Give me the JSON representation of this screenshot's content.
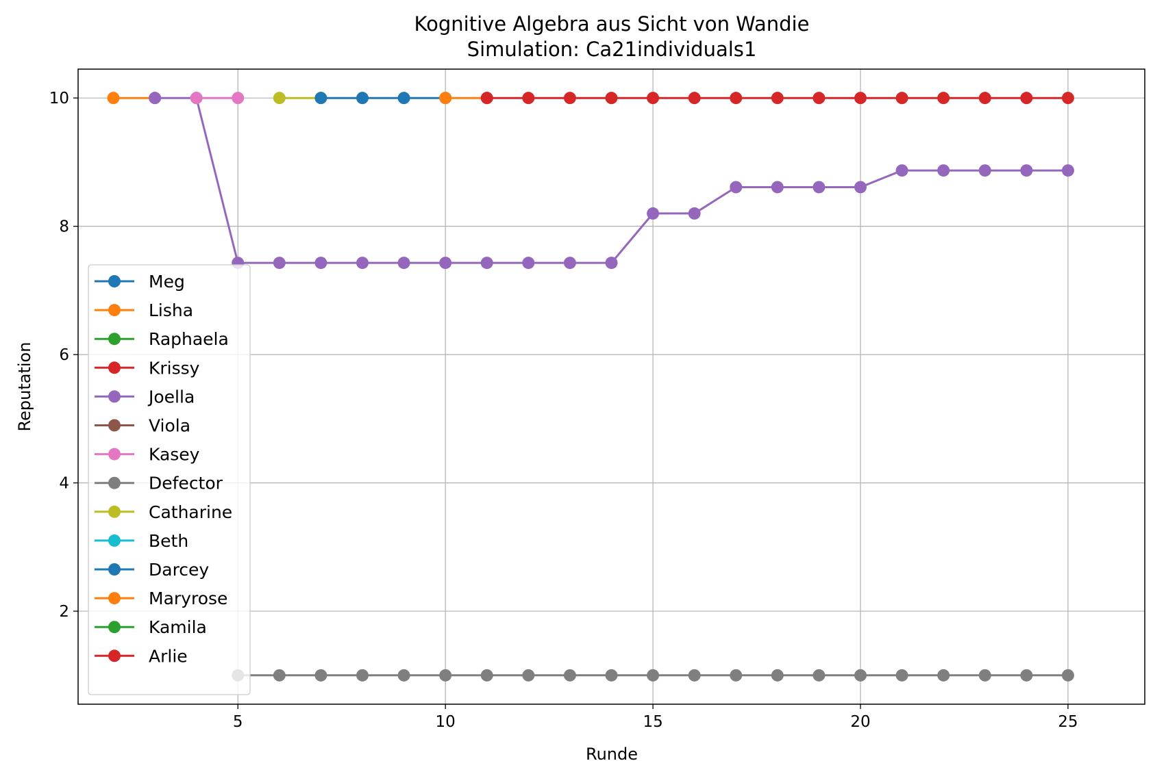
{
  "chart_data": {
    "type": "line",
    "title": "Kognitive Algebra aus Sicht von Wandie",
    "subtitle": "Simulation: Ca21individuals1",
    "xlabel": "Runde",
    "ylabel": "Reputation",
    "xlim": [
      1.15,
      26.85
    ],
    "ylim": [
      0.55,
      10.45
    ],
    "xticks": [
      5,
      10,
      15,
      20,
      25
    ],
    "yticks": [
      2,
      4,
      6,
      8,
      10
    ],
    "grid": true,
    "legend_position": "lower-left",
    "series": [
      {
        "name": "Meg",
        "color": "#1f77b4",
        "x": [],
        "y": []
      },
      {
        "name": "Lisha",
        "color": "#ff7f0e",
        "x": [
          2,
          3
        ],
        "y": [
          10,
          10
        ]
      },
      {
        "name": "Raphaela",
        "color": "#2ca02c",
        "x": [],
        "y": []
      },
      {
        "name": "Krissy",
        "color": "#d62728",
        "x": [],
        "y": []
      },
      {
        "name": "Joella",
        "color": "#9467bd",
        "x": [
          3,
          4,
          5,
          6,
          7,
          8,
          9,
          10,
          11,
          12,
          13,
          14,
          15,
          16,
          17,
          18,
          19,
          20,
          21,
          22,
          23,
          24,
          25
        ],
        "y": [
          10,
          10,
          7.43,
          7.43,
          7.43,
          7.43,
          7.43,
          7.43,
          7.43,
          7.43,
          7.43,
          7.43,
          8.2,
          8.2,
          8.61,
          8.61,
          8.61,
          8.61,
          8.87,
          8.87,
          8.87,
          8.87,
          8.87
        ]
      },
      {
        "name": "Viola",
        "color": "#8c564b",
        "x": [],
        "y": []
      },
      {
        "name": "Kasey",
        "color": "#e377c2",
        "x": [
          4,
          5
        ],
        "y": [
          10,
          10
        ]
      },
      {
        "name": "Defector",
        "color": "#7f7f7f",
        "x": [
          5,
          6,
          7,
          8,
          9,
          10,
          11,
          12,
          13,
          14,
          15,
          16,
          17,
          18,
          19,
          20,
          21,
          22,
          23,
          24,
          25
        ],
        "y": [
          1,
          1,
          1,
          1,
          1,
          1,
          1,
          1,
          1,
          1,
          1,
          1,
          1,
          1,
          1,
          1,
          1,
          1,
          1,
          1,
          1
        ]
      },
      {
        "name": "Catharine",
        "color": "#bcbd22",
        "x": [
          6,
          7
        ],
        "y": [
          10,
          10
        ]
      },
      {
        "name": "Beth",
        "color": "#17becf",
        "x": [],
        "y": []
      },
      {
        "name": "Darcey",
        "color": "#1f77b4",
        "x": [
          7,
          8,
          9,
          10
        ],
        "y": [
          10,
          10,
          10,
          10
        ]
      },
      {
        "name": "Maryrose",
        "color": "#ff7f0e",
        "x": [
          10,
          11
        ],
        "y": [
          10,
          10
        ]
      },
      {
        "name": "Kamila",
        "color": "#2ca02c",
        "x": [],
        "y": []
      },
      {
        "name": "Arlie",
        "color": "#d62728",
        "x": [
          11,
          12,
          13,
          14,
          15,
          16,
          17,
          18,
          19,
          20,
          21,
          22,
          23,
          24,
          25
        ],
        "y": [
          10,
          10,
          10,
          10,
          10,
          10,
          10,
          10,
          10,
          10,
          10,
          10,
          10,
          10,
          10
        ]
      }
    ]
  }
}
